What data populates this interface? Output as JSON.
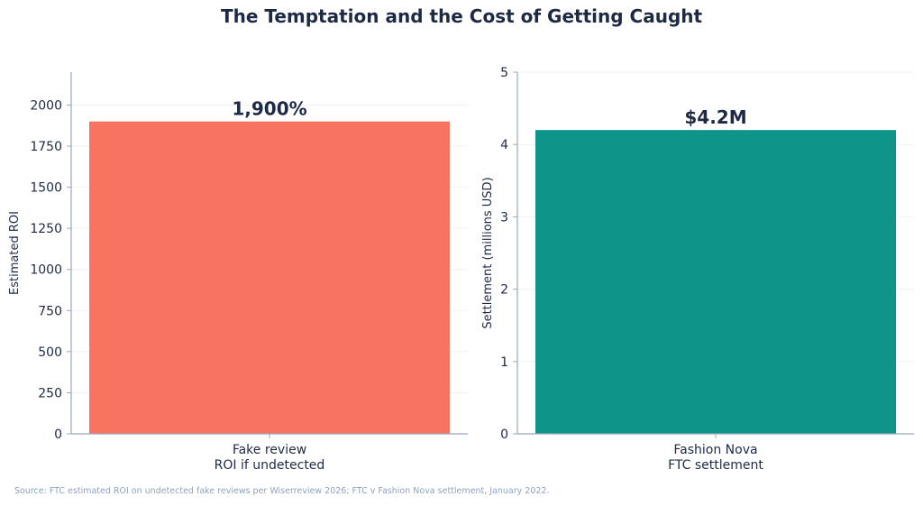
{
  "title": "The Temptation and the Cost of Getting Caught",
  "source_note": "Source: FTC estimated ROI on undetected fake reviews per Wiserreview 2026; FTC v Fashion Nova settlement, January 2022.",
  "chart_data": [
    {
      "type": "bar",
      "categories": [
        [
          "Fake review",
          "ROI if undetected"
        ]
      ],
      "values": [
        1900
      ],
      "data_labels": [
        "1,900%"
      ],
      "ylabel": "Estimated ROI",
      "ylim": [
        0,
        2200
      ],
      "yticks": [
        0,
        250,
        500,
        750,
        1000,
        1250,
        1500,
        1750,
        2000
      ],
      "ytick_labels": [
        "0",
        "250",
        "500",
        "750",
        "1000",
        "1250",
        "1500",
        "1750",
        "2000"
      ],
      "color": "#f87461",
      "grid": true
    },
    {
      "type": "bar",
      "categories": [
        [
          "Fashion Nova",
          "FTC settlement"
        ]
      ],
      "values": [
        4.2
      ],
      "data_labels": [
        "$4.2M"
      ],
      "ylabel": "Settlement (millions USD)",
      "ylim": [
        0,
        5
      ],
      "yticks": [
        0,
        1,
        2,
        3,
        4,
        5
      ],
      "ytick_labels": [
        "0",
        "1",
        "2",
        "3",
        "4",
        "5"
      ],
      "color": "#0e9488",
      "grid": true
    }
  ]
}
